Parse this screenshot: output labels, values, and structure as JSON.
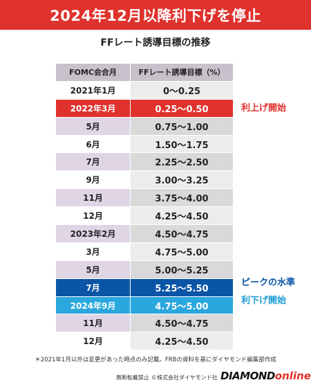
{
  "banner": {
    "title": "2024年12月以降利下げを停止"
  },
  "subtitle": "FFレート誘導目標の推移",
  "table": {
    "headers": [
      "FOMC会合月",
      "FFレート誘導目標（%）"
    ],
    "rows": [
      {
        "month": "2021年1月",
        "rate": "0～0.25"
      },
      {
        "month": "2022年3月",
        "rate": "0.25～0.50"
      },
      {
        "month": "5月",
        "rate": "0.75～1.00"
      },
      {
        "month": "6月",
        "rate": "1.50～1.75"
      },
      {
        "month": "7月",
        "rate": "2.25～2.50"
      },
      {
        "month": "9月",
        "rate": "3.00～3.25"
      },
      {
        "month": "11月",
        "rate": "3.75～4.00"
      },
      {
        "month": "12月",
        "rate": "4.25～4.50"
      },
      {
        "month": "2023年2月",
        "rate": "4.50～4.75"
      },
      {
        "month": "3月",
        "rate": "4.75～5.00"
      },
      {
        "month": "5月",
        "rate": "5.00～5.25"
      },
      {
        "month": "7月",
        "rate": "5.25～5.50"
      },
      {
        "month": "2024年9月",
        "rate": "4.75～5.00"
      },
      {
        "month": "11月",
        "rate": "4.50～4.75"
      },
      {
        "month": "12月",
        "rate": "4.25～4.50"
      }
    ]
  },
  "annotations": {
    "hike_start": "利上げ開始",
    "peak": "ピークの水準",
    "cut_start": "利下げ開始"
  },
  "colors": {
    "red": "#e0322d",
    "navy": "#0b55a6",
    "cyan": "#2aa7dd"
  },
  "footer": {
    "note": "＊2021年1月以外は変更があった時点のみ記載。FRBの資料を基にダイヤモンド編集部作成",
    "rights": "無断転載禁止",
    "copyright": "©株式会社ダイヤモンド社",
    "logo_main": "DIAMOND",
    "logo_sub": "online"
  }
}
